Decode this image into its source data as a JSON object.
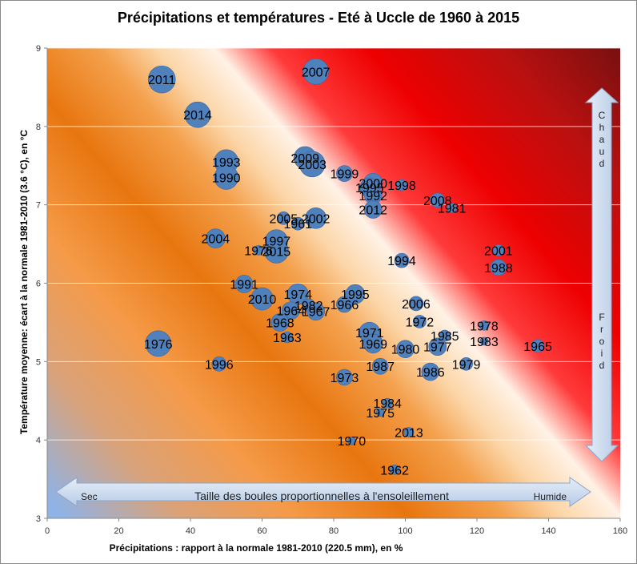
{
  "chart_data": {
    "type": "scatter",
    "title": "Précipitations  et températures - Eté à Uccle de 1960 à 2015",
    "xlabel": "Précipitations : rapport à la normale 1981-2010 (220.5 mm), en %",
    "ylabel": "Température moyenne: écart à  la normale 1981-2010 (3.6 °C), en °C",
    "xlim": [
      0,
      160
    ],
    "ylim": [
      3,
      9
    ],
    "xticks": [
      "0",
      "20",
      "40",
      "60",
      "80",
      "100",
      "120",
      "140",
      "160"
    ],
    "yticks": [
      "3",
      "4",
      "5",
      "6",
      "7",
      "8",
      "9"
    ],
    "grid": "horizontal",
    "highlight_color": "#ffff44",
    "bubble_color": "#4f81bd",
    "points": [
      {
        "label": "2011",
        "x": 32,
        "y": 8.6,
        "r": 17
      },
      {
        "label": "2007",
        "x": 75,
        "y": 8.7,
        "r": 16
      },
      {
        "label": "2014",
        "x": 42,
        "y": 8.15,
        "r": 16
      },
      {
        "label": "1993",
        "x": 50,
        "y": 7.55,
        "r": 15
      },
      {
        "label": "1990",
        "x": 50,
        "y": 7.35,
        "r": 15
      },
      {
        "label": "2009",
        "x": 72,
        "y": 7.6,
        "r": 14
      },
      {
        "label": "2003",
        "x": 74,
        "y": 7.52,
        "r": 16
      },
      {
        "label": "1999",
        "x": 83,
        "y": 7.4,
        "r": 10
      },
      {
        "label": "2000",
        "x": 91,
        "y": 7.28,
        "r": 12
      },
      {
        "label": "1995",
        "x": 90,
        "y": 7.22,
        "r": 12
      },
      {
        "label": "1998",
        "x": 99,
        "y": 7.25,
        "r": 7
      },
      {
        "label": "1992",
        "x": 91,
        "y": 7.12,
        "r": 11
      },
      {
        "label": "2008",
        "x": 109,
        "y": 7.06,
        "r": 9
      },
      {
        "label": "1981",
        "x": 113,
        "y": 6.96,
        "r": 6
      },
      {
        "label": "2012",
        "x": 91,
        "y": 6.94,
        "r": 11
      },
      {
        "label": "2002",
        "x": 75,
        "y": 6.83,
        "r": 13
      },
      {
        "label": "2005",
        "x": 66,
        "y": 6.83,
        "r": 8
      },
      {
        "label": "1961",
        "x": 70,
        "y": 6.76,
        "r": 8
      },
      {
        "label": "2004",
        "x": 47,
        "y": 6.57,
        "r": 12
      },
      {
        "label": "1997",
        "x": 64,
        "y": 6.54,
        "r": 14
      },
      {
        "label": "1976b",
        "text": "1976",
        "x": 59,
        "y": 6.42,
        "r": 6
      },
      {
        "label": "2015",
        "x": 64,
        "y": 6.41,
        "r": 15,
        "highlight": true
      },
      {
        "label": "1994",
        "x": 99,
        "y": 6.29,
        "r": 9
      },
      {
        "label": "2001",
        "x": 126,
        "y": 6.42,
        "r": 7
      },
      {
        "label": "1988",
        "x": 126,
        "y": 6.2,
        "r": 10
      },
      {
        "label": "1991",
        "x": 55,
        "y": 5.99,
        "r": 11
      },
      {
        "label": "1974",
        "x": 70,
        "y": 5.86,
        "r": 13
      },
      {
        "label": "1995b",
        "text": "1995",
        "x": 86,
        "y": 5.86,
        "r": 12
      },
      {
        "label": "2010",
        "x": 60,
        "y": 5.8,
        "r": 14
      },
      {
        "label": "1982",
        "x": 73,
        "y": 5.72,
        "r": 8
      },
      {
        "label": "1966",
        "x": 83,
        "y": 5.73,
        "r": 10
      },
      {
        "label": "2006",
        "x": 103,
        "y": 5.74,
        "r": 9
      },
      {
        "label": "1964",
        "x": 68,
        "y": 5.65,
        "r": 11
      },
      {
        "label": "1967",
        "x": 75,
        "y": 5.64,
        "r": 11
      },
      {
        "label": "1968",
        "x": 65,
        "y": 5.5,
        "r": 11
      },
      {
        "label": "1972",
        "x": 104,
        "y": 5.51,
        "r": 8
      },
      {
        "label": "1978",
        "x": 122,
        "y": 5.46,
        "r": 6
      },
      {
        "label": "1963",
        "x": 67,
        "y": 5.31,
        "r": 7
      },
      {
        "label": "1971",
        "x": 90,
        "y": 5.37,
        "r": 13
      },
      {
        "label": "1985",
        "x": 111,
        "y": 5.33,
        "r": 7
      },
      {
        "label": "1983",
        "x": 122,
        "y": 5.26,
        "r": 5
      },
      {
        "label": "1969",
        "x": 91,
        "y": 5.23,
        "r": 12
      },
      {
        "label": "1977",
        "x": 109,
        "y": 5.19,
        "r": 11
      },
      {
        "label": "1976",
        "x": 31,
        "y": 5.23,
        "r": 16
      },
      {
        "label": "1965",
        "x": 137,
        "y": 5.2,
        "r": 8
      },
      {
        "label": "1980",
        "x": 100,
        "y": 5.16,
        "r": 11
      },
      {
        "label": "1979",
        "x": 117,
        "y": 4.97,
        "r": 8
      },
      {
        "label": "1996",
        "x": 48,
        "y": 4.97,
        "r": 9
      },
      {
        "label": "1987",
        "x": 93,
        "y": 4.94,
        "r": 10
      },
      {
        "label": "1986",
        "x": 107,
        "y": 4.87,
        "r": 11
      },
      {
        "label": "1973",
        "x": 83,
        "y": 4.8,
        "r": 10
      },
      {
        "label": "1984",
        "x": 95,
        "y": 4.47,
        "r": 6
      },
      {
        "label": "1975",
        "x": 93,
        "y": 4.35,
        "r": 5
      },
      {
        "label": "2013",
        "x": 101,
        "y": 4.1,
        "r": 6
      },
      {
        "label": "1970",
        "x": 85,
        "y": 3.99,
        "r": 5
      },
      {
        "label": "1962",
        "x": 97,
        "y": 3.62,
        "r": 6
      }
    ],
    "annotations": {
      "sec": "Sec",
      "humide": "Humide",
      "size_note": "Taille des boules proportionnelles  à l'ensoleillement",
      "chaud": "Chaud",
      "froid": "Froid"
    }
  }
}
